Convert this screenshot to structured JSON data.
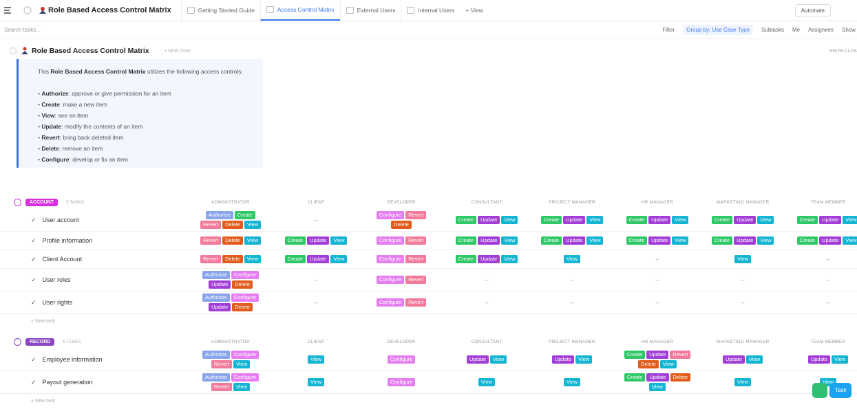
{
  "topbar": {
    "title": "Role Based Access Control Matrix",
    "tabs": [
      "Getting Started Guide",
      "Access Control Matrix",
      "External Users",
      "Internal Users"
    ],
    "active_tab": 1,
    "add_view": "+ View",
    "automate": "Automate"
  },
  "toolbar": {
    "search": "Search tasks...",
    "filter": "Filter",
    "group_by": "Group by: Use Case Type",
    "subtasks": "Subtasks",
    "me": "Me",
    "assignees": "Assignees",
    "show": "Show"
  },
  "list": {
    "title": "Role Based Access Control Matrix",
    "new_task": "+ NEW TASK",
    "show_closed": "SHOW CLOSED"
  },
  "description": {
    "intro_before": "This ",
    "intro_bold": "Role Based Access Control Matrix",
    "intro_after": " utilizes the following access controls:",
    "items": [
      {
        "term": "Authorize",
        "text": ": approve or give permission for an item"
      },
      {
        "term": "Create",
        "text": ": make a new item"
      },
      {
        "term": "View",
        "text": ": see an item"
      },
      {
        "term": "Update",
        "text": ": modify the contents of an item"
      },
      {
        "term": "Revert",
        "text": ": bring back deleted item"
      },
      {
        "term": "Delete",
        "text": ": remove an item"
      },
      {
        "term": "Configure",
        "text": ": develop or fix an item"
      }
    ]
  },
  "columns": [
    "ADMINISTRATOR",
    "CLIENT",
    "DEVELOPER",
    "CONSULTANT",
    "PROJECT MANAGER",
    "HR MANAGER",
    "MARKETING MANAGER",
    "TEAM MEMBER"
  ],
  "tag_colors": {
    "Authorize": "#8aa5ec",
    "Create": "#2ec866",
    "Revert": "#f27a9b",
    "Delete": "#e25c1c",
    "View": "#14b5d3",
    "Update": "#a23dd8",
    "Configure": "#e47ef1"
  },
  "groups": [
    {
      "name": "ACCOUNT",
      "count": "5 TASKS",
      "color": "#d62fe0",
      "new_task": "+ New task",
      "rows": [
        {
          "name": "User account",
          "cells": [
            [
              "Authorize",
              "Create",
              "Revert",
              "Delete",
              "View"
            ],
            "–",
            [
              "Configure",
              "Revert",
              "Delete"
            ],
            [
              "Create",
              "Update",
              "View"
            ],
            [
              "Create",
              "Update",
              "View"
            ],
            [
              "Create",
              "Update",
              "View"
            ],
            [
              "Create",
              "Update",
              "View"
            ],
            [
              "Create",
              "Update",
              "View"
            ]
          ]
        },
        {
          "name": "Profile information",
          "cells": [
            [
              "Revert",
              "Delete",
              "View"
            ],
            [
              "Create",
              "Update",
              "View"
            ],
            [
              "Configure",
              "Revert"
            ],
            [
              "Create",
              "Update",
              "View"
            ],
            [
              "Create",
              "Update",
              "View"
            ],
            [
              "Create",
              "Update",
              "View"
            ],
            [
              "Create",
              "Update",
              "View"
            ],
            [
              "Create",
              "Update",
              "View"
            ]
          ]
        },
        {
          "name": "Client Account",
          "cells": [
            [
              "Revert",
              "Delete",
              "View"
            ],
            [
              "Create",
              "Update",
              "View"
            ],
            [
              "Configure",
              "Revert"
            ],
            [
              "Create",
              "Update",
              "View"
            ],
            [
              "View"
            ],
            "–",
            [
              "View"
            ],
            "–"
          ]
        },
        {
          "name": "User roles",
          "cells": [
            [
              "Authorize",
              "Configure",
              "Update",
              "Delete"
            ],
            "–",
            [
              "Configure",
              "Revert"
            ],
            "–",
            "–",
            "–",
            "–",
            "–"
          ]
        },
        {
          "name": "User rights",
          "cells": [
            [
              "Authorize",
              "Configure",
              "Update",
              "Delete"
            ],
            "–",
            [
              "Configure",
              "Revert"
            ],
            "–",
            "–",
            "–",
            "–",
            "–"
          ]
        }
      ]
    },
    {
      "name": "RECORD",
      "count": "5 TASKS",
      "color": "#8a46c2",
      "new_task": "+ New task",
      "rows": [
        {
          "name": "Employee information",
          "cells": [
            [
              "Authorize",
              "Configure",
              "Revert",
              "View"
            ],
            [
              "View"
            ],
            [
              "Configure"
            ],
            [
              "Update",
              "View"
            ],
            [
              "Update",
              "View"
            ],
            [
              "Create",
              "Update",
              "Revert",
              "Delete",
              "View"
            ],
            [
              "Update",
              "View"
            ],
            [
              "Update",
              "View"
            ]
          ]
        },
        {
          "name": "Payout generation",
          "cells": [
            [
              "Authorize",
              "Configure",
              "Revert",
              "View"
            ],
            [
              "View"
            ],
            [
              "Configure"
            ],
            [
              "View"
            ],
            [
              "View"
            ],
            [
              "Create",
              "Update",
              "Delete",
              "View"
            ],
            [
              "View"
            ],
            [
              "View"
            ]
          ]
        }
      ]
    }
  ],
  "fab": {
    "label": "Task"
  }
}
